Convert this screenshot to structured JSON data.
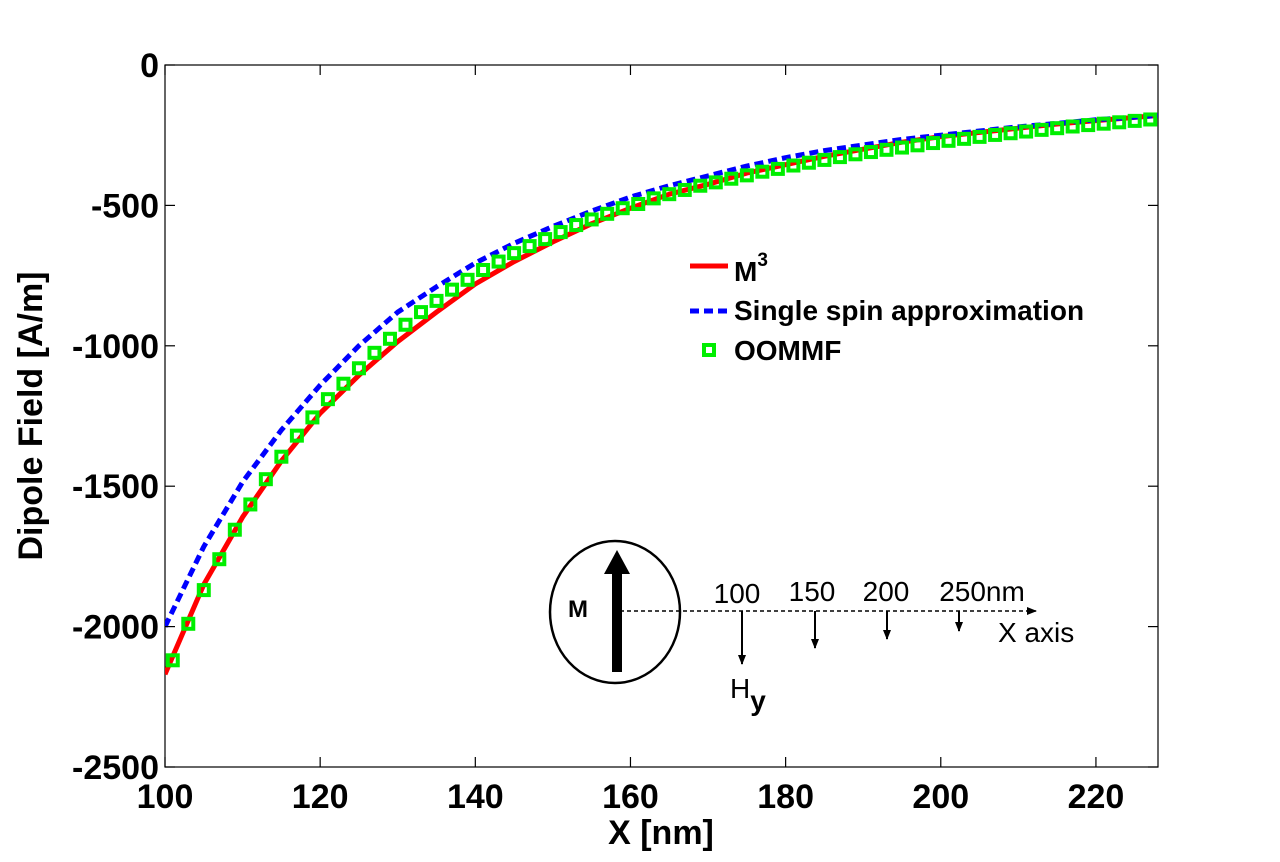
{
  "chart_data": {
    "type": "line",
    "title": "",
    "xlabel": "X [nm]",
    "ylabel": "Dipole Field [A/m]",
    "xlim": [
      100,
      228
    ],
    "ylim": [
      -2500,
      0
    ],
    "xticks": [
      100,
      120,
      140,
      160,
      180,
      200,
      220
    ],
    "yticks": [
      0,
      -500,
      -1000,
      -1500,
      -2000,
      -2500
    ],
    "grid": false,
    "legend_position": "center-right",
    "series": [
      {
        "name": "M",
        "name_superscript": "3",
        "style": "solid",
        "color": "#ff0000",
        "x": [
          100,
          105,
          110,
          115,
          120,
          125,
          130,
          135,
          140,
          145,
          150,
          155,
          160,
          165,
          170,
          175,
          180,
          185,
          190,
          195,
          200,
          205,
          210,
          215,
          220,
          228
        ],
        "values": [
          -2170,
          -1850,
          -1610,
          -1410,
          -1240,
          -1105,
          -985,
          -880,
          -780,
          -700,
          -630,
          -565,
          -510,
          -460,
          -425,
          -385,
          -355,
          -325,
          -300,
          -275,
          -255,
          -240,
          -225,
          -210,
          -198,
          -180
        ]
      },
      {
        "name": "Single spin approximation",
        "style": "dashed",
        "color": "#0000ff",
        "x": [
          100,
          105,
          110,
          115,
          120,
          125,
          130,
          135,
          140,
          145,
          150,
          155,
          160,
          165,
          170,
          175,
          180,
          185,
          190,
          195,
          200,
          205,
          210,
          215,
          220,
          228
        ],
        "values": [
          -2000,
          -1715,
          -1485,
          -1300,
          -1140,
          -1000,
          -880,
          -790,
          -705,
          -635,
          -575,
          -520,
          -470,
          -430,
          -395,
          -360,
          -330,
          -305,
          -285,
          -265,
          -250,
          -235,
          -220,
          -208,
          -195,
          -180
        ]
      },
      {
        "name": "OOMMF",
        "style": "markers",
        "marker": "square",
        "color": "#00ee00",
        "x": [
          101,
          103,
          105,
          107,
          109,
          111,
          113,
          115,
          117,
          119,
          121,
          123,
          125,
          127,
          129,
          131,
          133,
          135,
          137,
          139,
          141,
          143,
          145,
          147,
          149,
          151,
          153,
          155,
          157,
          159,
          161,
          163,
          165,
          167,
          169,
          171,
          173,
          175,
          177,
          179,
          181,
          183,
          185,
          187,
          189,
          191,
          193,
          195,
          197,
          199,
          201,
          203,
          205,
          207,
          209,
          211,
          213,
          215,
          217,
          219,
          221,
          223,
          225,
          227
        ],
        "values": [
          -2120,
          -1990,
          -1870,
          -1760,
          -1655,
          -1565,
          -1475,
          -1395,
          -1320,
          -1255,
          -1190,
          -1135,
          -1080,
          -1025,
          -975,
          -925,
          -880,
          -840,
          -800,
          -765,
          -730,
          -700,
          -670,
          -645,
          -620,
          -595,
          -570,
          -550,
          -530,
          -510,
          -495,
          -475,
          -460,
          -445,
          -430,
          -418,
          -405,
          -393,
          -380,
          -370,
          -358,
          -348,
          -338,
          -328,
          -318,
          -310,
          -302,
          -294,
          -286,
          -278,
          -270,
          -263,
          -256,
          -249,
          -243,
          -237,
          -231,
          -225,
          -219,
          -214,
          -209,
          -204,
          -199,
          -194
        ]
      }
    ],
    "inset": {
      "circle_label": "M",
      "distance_labels": [
        "100",
        "150",
        "200",
        "250nm"
      ],
      "axis_label": "X axis",
      "field_label": "H",
      "field_subscript": "y"
    },
    "colors": {
      "axis": "#000000",
      "background": "#ffffff"
    }
  }
}
